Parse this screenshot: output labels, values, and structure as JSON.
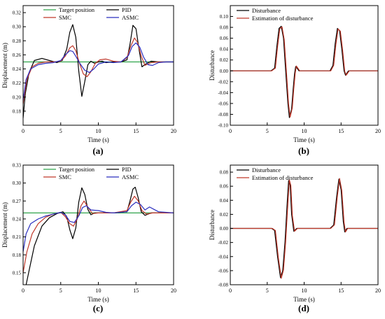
{
  "chart_data": [
    {
      "panel_label": "(a)",
      "type": "line",
      "xlabel": "Time (s)",
      "ylabel": "Displacement (m)",
      "xlim": [
        0,
        20
      ],
      "ylim": [
        0.16,
        0.33
      ],
      "xticks": [
        0,
        5,
        10,
        15,
        20
      ],
      "yticks": [
        0.18,
        0.2,
        0.22,
        0.24,
        0.26,
        0.28,
        0.3,
        0.32
      ],
      "ytick_decimals": 2,
      "legend_cols": 2,
      "series": [
        {
          "name": "Target position",
          "color": "#2fa34a",
          "x": [
            0,
            20
          ],
          "y": [
            0.25,
            0.25
          ]
        },
        {
          "name": "PID",
          "color": "#000000",
          "x": [
            0,
            0.3,
            0.8,
            1.5,
            2.5,
            3.5,
            4.5,
            5.2,
            5.8,
            6.2,
            6.6,
            7.0,
            7.4,
            7.8,
            8.2,
            8.6,
            9.0,
            9.5,
            10,
            10.5,
            11,
            12,
            13,
            13.8,
            14.2,
            14.6,
            15.0,
            15.4,
            15.8,
            16.3,
            17,
            18,
            19,
            20
          ],
          "y": [
            0.17,
            0.205,
            0.235,
            0.252,
            0.255,
            0.252,
            0.249,
            0.252,
            0.268,
            0.292,
            0.303,
            0.285,
            0.237,
            0.201,
            0.222,
            0.246,
            0.251,
            0.248,
            0.25,
            0.251,
            0.249,
            0.25,
            0.25,
            0.253,
            0.275,
            0.302,
            0.297,
            0.268,
            0.243,
            0.247,
            0.251,
            0.25,
            0.25,
            0.25
          ]
        },
        {
          "name": "SMC",
          "color": "#c0392b",
          "x": [
            0,
            0.5,
            1.2,
            2.0,
            3.0,
            4.0,
            5.0,
            5.6,
            6.2,
            6.6,
            7.0,
            7.5,
            8.0,
            8.5,
            9.0,
            9.6,
            10.2,
            11,
            12,
            13,
            13.8,
            14.3,
            14.8,
            15.2,
            15.7,
            16.2,
            17,
            18,
            19,
            20
          ],
          "y": [
            0.19,
            0.225,
            0.243,
            0.248,
            0.25,
            0.25,
            0.251,
            0.258,
            0.27,
            0.273,
            0.266,
            0.248,
            0.233,
            0.229,
            0.236,
            0.248,
            0.253,
            0.254,
            0.251,
            0.25,
            0.256,
            0.272,
            0.284,
            0.278,
            0.258,
            0.245,
            0.249,
            0.25,
            0.25,
            0.25
          ]
        },
        {
          "name": "ASMC",
          "color": "#2b2fbf",
          "x": [
            0,
            0.4,
            1.0,
            2.0,
            3.0,
            4.0,
            5.0,
            5.6,
            6.2,
            6.6,
            7.0,
            7.6,
            8.2,
            8.8,
            9.4,
            10,
            11,
            12,
            13,
            14,
            14.5,
            15.0,
            15.5,
            16.0,
            16.6,
            17.2,
            18,
            19,
            20
          ],
          "y": [
            0.195,
            0.225,
            0.24,
            0.246,
            0.248,
            0.249,
            0.252,
            0.26,
            0.266,
            0.265,
            0.258,
            0.247,
            0.238,
            0.235,
            0.24,
            0.247,
            0.25,
            0.249,
            0.25,
            0.259,
            0.272,
            0.277,
            0.271,
            0.257,
            0.246,
            0.245,
            0.249,
            0.25,
            0.25
          ]
        }
      ]
    },
    {
      "panel_label": "(b)",
      "type": "line",
      "xlabel": "Time (s)",
      "ylabel": "Disturbance",
      "xlim": [
        0,
        20
      ],
      "ylim": [
        -0.1,
        0.12
      ],
      "xticks": [
        0,
        5,
        10,
        15,
        20
      ],
      "yticks": [
        -0.1,
        -0.08,
        -0.06,
        -0.04,
        -0.02,
        0.0,
        0.02,
        0.04,
        0.06,
        0.08,
        0.1
      ],
      "ytick_decimals": 2,
      "legend_cols": 1,
      "series": [
        {
          "name": "Disturbance",
          "color": "#000000",
          "x": [
            0,
            5.5,
            6.0,
            6.3,
            6.6,
            6.9,
            7.2,
            7.5,
            7.8,
            8.0,
            8.3,
            8.5,
            8.7,
            8.85,
            9.0,
            9.3,
            9.6,
            13.5,
            13.9,
            14.2,
            14.5,
            14.8,
            15.1,
            15.4,
            15.6,
            16,
            20
          ],
          "y": [
            0,
            0,
            0.005,
            0.045,
            0.078,
            0.082,
            0.06,
            0.0,
            -0.06,
            -0.086,
            -0.07,
            -0.035,
            -0.005,
            0.008,
            0.006,
            0.0,
            0.0,
            0,
            0.01,
            0.05,
            0.078,
            0.074,
            0.04,
            0.0,
            -0.008,
            0.0,
            0
          ]
        },
        {
          "name": "Estimation of disturbance",
          "color": "#c0392b",
          "x": [
            0,
            5.6,
            6.1,
            6.4,
            6.7,
            7.0,
            7.3,
            7.6,
            7.9,
            8.1,
            8.4,
            8.6,
            8.8,
            8.95,
            9.1,
            9.4,
            9.7,
            13.6,
            14.0,
            14.3,
            14.6,
            14.9,
            15.2,
            15.5,
            15.7,
            16.1,
            20
          ],
          "y": [
            0,
            0,
            0.005,
            0.044,
            0.077,
            0.081,
            0.058,
            -0.002,
            -0.062,
            -0.085,
            -0.068,
            -0.033,
            -0.004,
            0.009,
            0.006,
            0.0,
            0.0,
            0,
            0.01,
            0.049,
            0.077,
            0.073,
            0.039,
            -0.001,
            -0.008,
            0.0,
            0
          ]
        }
      ]
    },
    {
      "panel_label": "(c)",
      "type": "line",
      "xlabel": "Time (s)",
      "ylabel": "Displacement (m)",
      "xlim": [
        0,
        20
      ],
      "ylim": [
        0.13,
        0.33
      ],
      "xticks": [
        0,
        5,
        10,
        15,
        20
      ],
      "yticks": [
        0.15,
        0.18,
        0.21,
        0.24,
        0.27,
        0.3,
        0.33
      ],
      "ytick_decimals": 2,
      "legend_cols": 2,
      "series": [
        {
          "name": "Target position",
          "color": "#2fa34a",
          "x": [
            0,
            20
          ],
          "y": [
            0.25,
            0.25
          ]
        },
        {
          "name": "PID",
          "color": "#000000",
          "x": [
            0.4,
            0.9,
            1.5,
            2.5,
            3.5,
            4.5,
            5.3,
            5.8,
            6.2,
            6.6,
            7.0,
            7.4,
            7.8,
            8.2,
            8.6,
            9.0,
            9.5,
            10.5,
            12,
            13.8,
            14.2,
            14.6,
            14.9,
            15.3,
            15.7,
            16.2,
            17,
            18,
            20
          ],
          "y": [
            0.13,
            0.16,
            0.195,
            0.228,
            0.242,
            0.249,
            0.252,
            0.244,
            0.222,
            0.207,
            0.225,
            0.268,
            0.292,
            0.281,
            0.256,
            0.247,
            0.25,
            0.25,
            0.25,
            0.252,
            0.27,
            0.29,
            0.293,
            0.275,
            0.252,
            0.246,
            0.25,
            0.25,
            0.25
          ]
        },
        {
          "name": "SMC",
          "color": "#c0392b",
          "x": [
            0,
            0.5,
            1.2,
            2.0,
            3.0,
            4.0,
            5.0,
            5.6,
            6.2,
            6.7,
            7.2,
            7.7,
            8.1,
            8.6,
            9.2,
            10,
            12,
            13.8,
            14.3,
            14.8,
            15.3,
            15.8,
            16.4,
            17.2,
            18,
            20
          ],
          "y": [
            0.15,
            0.185,
            0.215,
            0.232,
            0.243,
            0.248,
            0.251,
            0.244,
            0.232,
            0.228,
            0.24,
            0.262,
            0.27,
            0.26,
            0.249,
            0.25,
            0.25,
            0.254,
            0.268,
            0.278,
            0.27,
            0.254,
            0.248,
            0.25,
            0.25,
            0.25
          ]
        },
        {
          "name": "ASMC",
          "color": "#2b2fbf",
          "x": [
            0,
            0.4,
            1.0,
            2.0,
            3.0,
            4.0,
            5.0,
            5.6,
            6.2,
            6.8,
            7.4,
            7.9,
            8.4,
            9.0,
            10.0,
            11,
            12,
            13.8,
            14.4,
            15.0,
            15.6,
            16.2,
            16.8,
            17.4,
            18,
            20
          ],
          "y": [
            0.185,
            0.215,
            0.232,
            0.24,
            0.245,
            0.248,
            0.251,
            0.247,
            0.236,
            0.234,
            0.245,
            0.259,
            0.262,
            0.255,
            0.254,
            0.251,
            0.25,
            0.252,
            0.262,
            0.268,
            0.264,
            0.255,
            0.26,
            0.256,
            0.252,
            0.25
          ]
        }
      ]
    },
    {
      "panel_label": "(d)",
      "type": "line",
      "xlabel": "Time (s)",
      "ylabel": "Disturbance",
      "xlim": [
        0,
        20
      ],
      "ylim": [
        -0.08,
        0.09
      ],
      "xticks": [
        0,
        5,
        10,
        15,
        20
      ],
      "yticks": [
        -0.08,
        -0.06,
        -0.04,
        -0.02,
        0.0,
        0.02,
        0.04,
        0.06,
        0.08
      ],
      "ytick_decimals": 2,
      "legend_cols": 1,
      "series": [
        {
          "name": "Disturbance",
          "color": "#000000",
          "x": [
            0,
            5.6,
            6.0,
            6.4,
            6.8,
            7.1,
            7.4,
            7.7,
            7.9,
            8.1,
            8.3,
            8.6,
            9.0,
            13.5,
            14.0,
            14.4,
            14.7,
            15.0,
            15.3,
            15.5,
            15.8,
            20
          ],
          "y": [
            0,
            0,
            -0.003,
            -0.04,
            -0.07,
            -0.06,
            -0.02,
            0.035,
            0.068,
            0.062,
            0.02,
            -0.004,
            0.0,
            0,
            0.005,
            0.045,
            0.07,
            0.055,
            0.01,
            -0.005,
            0.0,
            0
          ]
        },
        {
          "name": "Estimation of disturbance",
          "color": "#c0392b",
          "x": [
            0,
            5.7,
            6.1,
            6.5,
            6.9,
            7.2,
            7.5,
            7.8,
            8.0,
            8.2,
            8.4,
            8.7,
            9.1,
            13.6,
            14.1,
            14.5,
            14.8,
            15.1,
            15.4,
            15.6,
            15.9,
            20
          ],
          "y": [
            0,
            0,
            -0.003,
            -0.041,
            -0.071,
            -0.059,
            -0.019,
            0.036,
            0.069,
            0.061,
            0.019,
            -0.004,
            0.0,
            0,
            0.005,
            0.046,
            0.071,
            0.054,
            0.009,
            -0.005,
            0.0,
            0
          ]
        }
      ]
    }
  ]
}
